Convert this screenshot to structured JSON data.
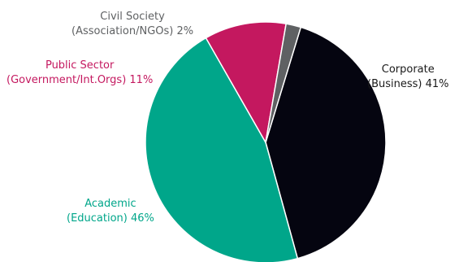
{
  "chart_data": {
    "type": "pie",
    "slices": [
      {
        "line1": "Corporate",
        "line2": "(Business) 41%",
        "value": 41,
        "color": "#050510"
      },
      {
        "line1": "Academic",
        "line2": "(Education) 46%",
        "value": 46,
        "color": "#00a68a"
      },
      {
        "line1": "Public Sector",
        "line2": "(Government/Int.Orgs) 11%",
        "value": 11,
        "color": "#c4185f"
      },
      {
        "line1": "Civil Society",
        "line2": "(Association/NGOs) 2%",
        "value": 2,
        "color": "#5f6163"
      }
    ]
  }
}
